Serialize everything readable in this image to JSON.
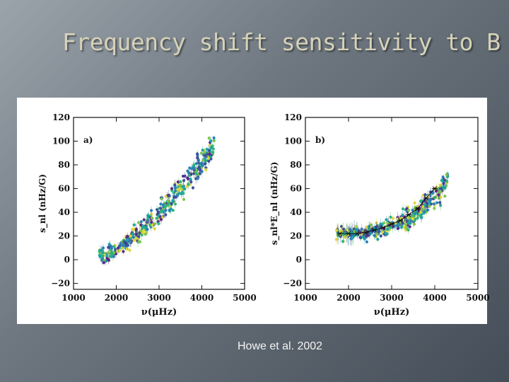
{
  "slide": {
    "title": "Frequency shift sensitivity to B",
    "caption": "Howe et al. 2002"
  },
  "colors": {
    "scale": [
      "#5b2a86",
      "#3b4f9a",
      "#2f7fb8",
      "#1aa3a8",
      "#2ab57a",
      "#7dc44a",
      "#dfd73a"
    ]
  },
  "chart_data": [
    {
      "type": "scatter",
      "panel_label": "a)",
      "xlabel": "ν(μHz)",
      "ylabel": "s_nl (nHz/G)",
      "xlim": [
        1000,
        5000
      ],
      "ylim": [
        -25,
        120
      ],
      "xticks": [
        "1000",
        "2000",
        "3000",
        "4000",
        "5000"
      ],
      "yticks": [
        "120",
        "100",
        "80",
        "60",
        "40",
        "20",
        "0",
        "−20"
      ],
      "x": [
        1600,
        1800,
        2000,
        2200,
        2400,
        2600,
        2800,
        3000,
        3200,
        3400,
        3600,
        3800,
        4000,
        4200,
        4300
      ],
      "y": [
        3,
        5,
        8,
        13,
        19,
        26,
        33,
        40,
        48,
        56,
        64,
        72,
        81,
        90,
        95
      ],
      "spread": 7,
      "color_mapped_by": "mode degree"
    },
    {
      "type": "scatter",
      "panel_label": "b)",
      "xlabel": "ν(μHz)",
      "ylabel": "s_nl*E_nl (nHz/G)",
      "xlim": [
        1000,
        5000
      ],
      "ylim": [
        -25,
        120
      ],
      "xticks": [
        "1000",
        "2000",
        "3000",
        "4000",
        "5000"
      ],
      "yticks": [
        "120",
        "100",
        "80",
        "60",
        "40",
        "20",
        "0",
        "−20"
      ],
      "x": [
        1700,
        1900,
        2100,
        2300,
        2500,
        2700,
        2900,
        3100,
        3300,
        3500,
        3700,
        3900,
        4100,
        4300
      ],
      "y": [
        22,
        22,
        22,
        22,
        23,
        25,
        27,
        30,
        33,
        38,
        43,
        50,
        57,
        66
      ],
      "spread": 6,
      "color_mapped_by": "mode degree",
      "binned_x": [
        1800,
        2000,
        2200,
        2400,
        2600,
        2800,
        3000,
        3200,
        3400,
        3600,
        3800,
        4000
      ],
      "binned_y": [
        22,
        22,
        22,
        23,
        25,
        27,
        30,
        33,
        38,
        43,
        52,
        60
      ]
    }
  ]
}
